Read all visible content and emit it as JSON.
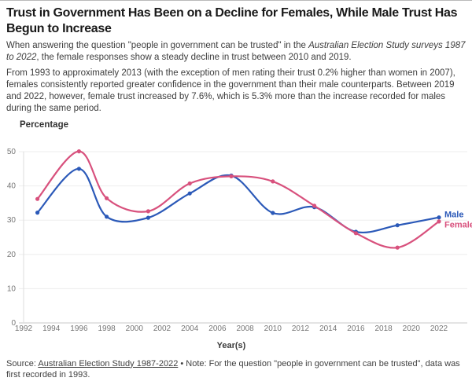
{
  "header": {
    "title": "Trust in Government Has Been on a Decline for Females, While Male Trust Has Begun to Increase",
    "intro_before_italic": "When answering the question \"people in government can be trusted\" in the ",
    "intro_italic": "Australian Election Study surveys 1987 to 2022",
    "intro_after_italic": ", the female responses show a steady decline in trust between 2010 and 2019.",
    "paragraph2": "From 1993 to approximately 2013 (with the exception of men rating their trust 0.2% higher than women in 2007), females consistently reported greater confidence in the government than their male counterparts. Between 2019 and 2022, however, female trust increased by 7.6%, which is 5.3% more than the increase recorded for males during the same period."
  },
  "chart_data": {
    "type": "line",
    "ylabel": "Percentage",
    "xlabel": "Year(s)",
    "x": [
      1993,
      1996,
      1998,
      2001,
      2004,
      2007,
      2010,
      2013,
      2016,
      2019,
      2022
    ],
    "series": [
      {
        "name": "Male",
        "color": "#2b59b8",
        "values": [
          32.2,
          45.0,
          31.0,
          30.7,
          37.8,
          43.0,
          32.1,
          33.8,
          26.6,
          28.5,
          30.8
        ]
      },
      {
        "name": "Female",
        "color": "#d8517d",
        "values": [
          36.2,
          50.1,
          36.4,
          32.6,
          40.7,
          42.8,
          41.3,
          34.2,
          26.2,
          22.0,
          29.6
        ]
      }
    ],
    "ylim": [
      0,
      50
    ],
    "yticks": [
      0,
      10,
      20,
      30,
      40,
      50
    ],
    "xticks": [
      1992,
      1994,
      1996,
      1998,
      2000,
      2002,
      2004,
      2006,
      2008,
      2010,
      2012,
      2014,
      2016,
      2018,
      2020,
      2022
    ],
    "grid": true,
    "legend_position": "line-end-labels",
    "grid_color": "#ededed",
    "axis_color": "#c9c9c9",
    "tick_label_color": "#757575",
    "axis_title_color": "#3a3a3a"
  },
  "footer": {
    "source_prefix": "Source: ",
    "source_link": "Australian Election Study 1987-2022",
    "source_suffix": " • Note: For the question \"people in government can be trusted\", data was first recorded in 1993."
  }
}
